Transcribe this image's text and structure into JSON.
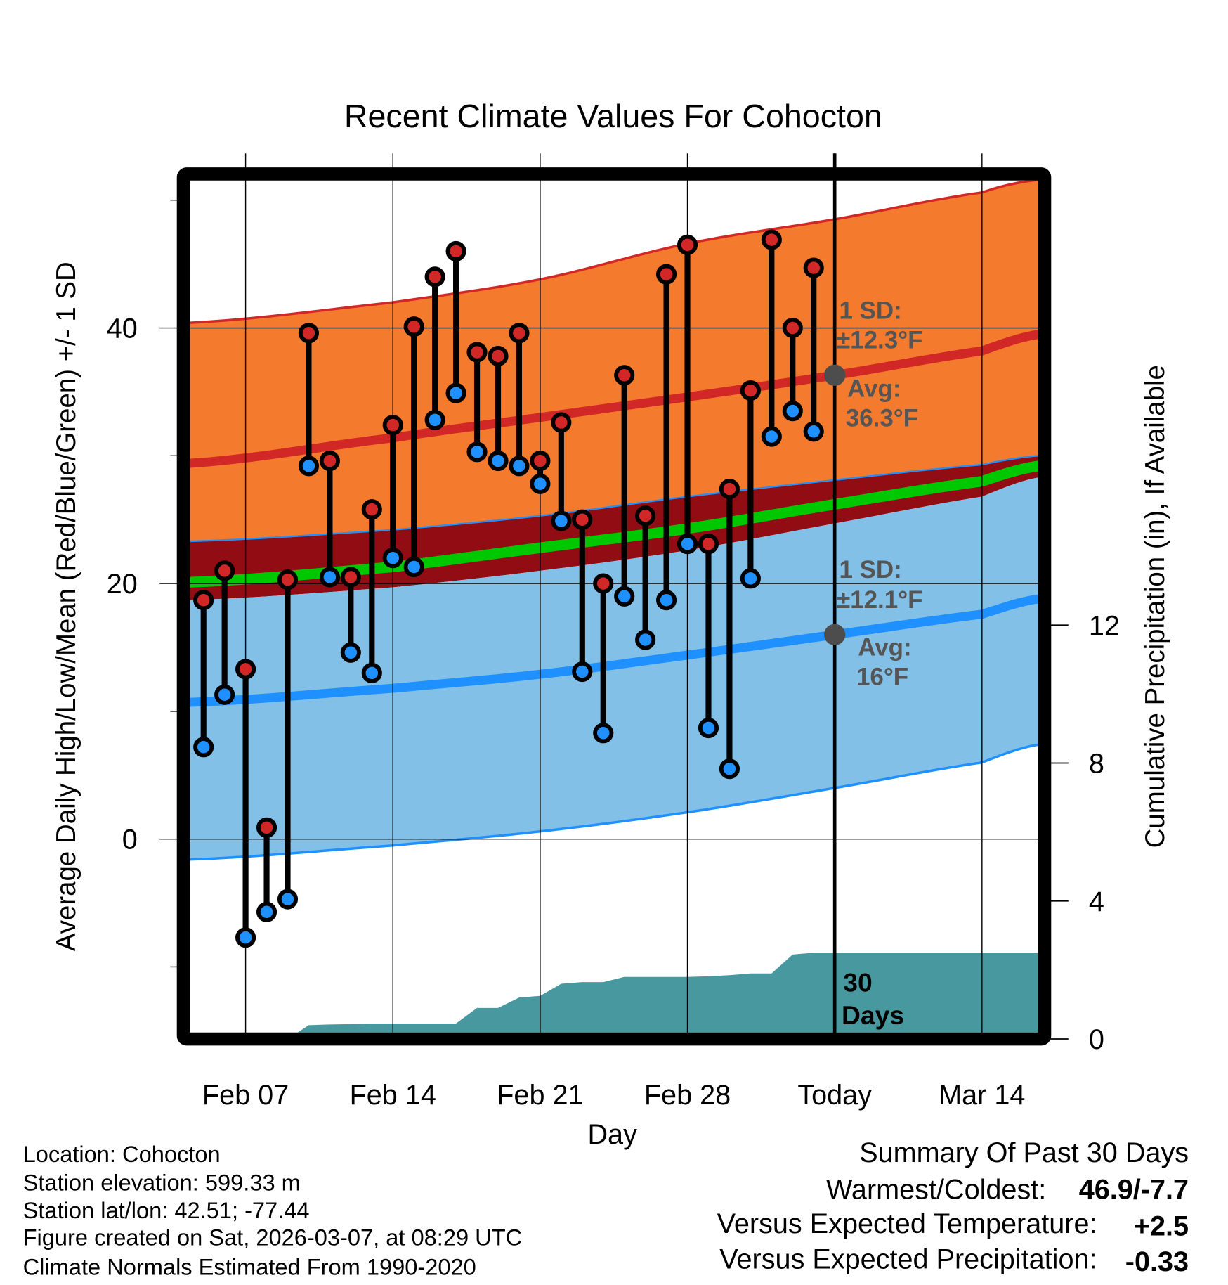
{
  "chart_data": {
    "type": "line",
    "title": "Recent Climate Values For Cohocton",
    "xlabel": "Day",
    "ylabel": "Average Daily High/Low/Mean (Red/Blue/Green) +/- 1 SD",
    "y2label": "Cumulative Precipitation (in), If Available",
    "ylim": [
      -15.6,
      52
    ],
    "y2lim": [
      0,
      25
    ],
    "yticks": [
      "40",
      "20",
      "0"
    ],
    "y2ticks": [
      "12",
      "8",
      "4",
      "0"
    ],
    "xticks": [
      "Feb 07",
      "Feb 14",
      "Feb 21",
      "Feb 28",
      "Today",
      "Mar 14"
    ],
    "grid": true,
    "days": [
      "Feb 05",
      "Feb 06",
      "Feb 07",
      "Feb 08",
      "Feb 09",
      "Feb 10",
      "Feb 11",
      "Feb 12",
      "Feb 13",
      "Feb 14",
      "Feb 15",
      "Feb 16",
      "Feb 17",
      "Feb 18",
      "Feb 19",
      "Feb 20",
      "Feb 21",
      "Feb 22",
      "Feb 23",
      "Feb 24",
      "Feb 25",
      "Feb 26",
      "Feb 27",
      "Feb 28",
      "Mar 01",
      "Mar 02",
      "Mar 03",
      "Mar 04",
      "Mar 05",
      "Mar 06"
    ],
    "series": [
      {
        "name": "Daily High",
        "color": "#d22727",
        "values": [
          18.7,
          21.0,
          13.3,
          0.9,
          20.3,
          39.6,
          29.6,
          20.5,
          25.8,
          32.4,
          40.1,
          44.0,
          46.0,
          38.1,
          37.8,
          39.6,
          29.6,
          32.6,
          25.0,
          20.0,
          36.3,
          25.3,
          44.2,
          46.5,
          23.1,
          27.4,
          35.1,
          46.9,
          40.0,
          44.7
        ]
      },
      {
        "name": "Daily Low",
        "color": "#1e90ff",
        "values": [
          7.2,
          11.3,
          -7.7,
          -5.7,
          -4.7,
          29.2,
          20.5,
          14.6,
          13.0,
          22.0,
          21.3,
          32.8,
          34.9,
          30.3,
          29.6,
          29.2,
          27.8,
          24.9,
          13.1,
          8.3,
          19.0,
          15.6,
          18.7,
          23.1,
          8.7,
          5.5,
          20.4,
          31.5,
          33.5,
          31.9
        ]
      },
      {
        "name": "Cumulative Precipitation",
        "color": "#47999f",
        "values": [
          0,
          0,
          0,
          0,
          0,
          0.4,
          0.42,
          0.43,
          0.45,
          0.45,
          0.45,
          0.45,
          0.45,
          0.9,
          0.9,
          1.2,
          1.25,
          1.6,
          1.65,
          1.65,
          1.8,
          1.8,
          1.8,
          1.8,
          1.82,
          1.85,
          1.9,
          1.9,
          2.45,
          2.5
        ]
      }
    ],
    "normals": {
      "days_from_feb07": [
        -2.7,
        7,
        14,
        21,
        28,
        35,
        37.7
      ],
      "high_plus_sd": [
        40.4,
        42.0,
        43.8,
        46.6,
        48.5,
        50.6,
        51.6
      ],
      "avg_high": [
        29.4,
        31.4,
        33.0,
        34.6,
        36.3,
        38.2,
        39.5
      ],
      "high_minus_sd": [
        23.3,
        24.2,
        25.3,
        26.8,
        28.1,
        29.3,
        30.0
      ],
      "mean": [
        20.1,
        21.3,
        22.8,
        24.3,
        26.2,
        28.0,
        29.2
      ],
      "low_plus_sd": [
        18.7,
        19.7,
        21.0,
        22.6,
        24.7,
        26.8,
        28.3
      ],
      "avg_low": [
        10.7,
        11.8,
        12.9,
        14.4,
        16.0,
        17.6,
        18.8
      ],
      "low_minus_sd": [
        -1.6,
        -0.5,
        0.6,
        2.1,
        4.0,
        6.0,
        7.4
      ]
    },
    "today_avg_high": 36.3,
    "today_avg_low": 16.0,
    "annotations": {
      "high_sd_line1": "1 SD:",
      "high_sd_line2": "±12.3°F",
      "high_avg_line1": "Avg:",
      "high_avg_line2": "36.3°F",
      "low_sd_line1": "1 SD:",
      "low_sd_line2": "±12.1°F",
      "low_avg_line1": "Avg:",
      "low_avg_line2": "16°F",
      "precip_line1": "30",
      "precip_line2": "Days"
    },
    "colors": {
      "orange": "#f47a2d",
      "dark_red": "#910d13",
      "green": "#00c800",
      "light_blue": "#82c0e7",
      "red_line": "#d22727",
      "blue_line": "#1e90ff",
      "precip": "#47999f",
      "marker_gray": "#4d4d4d"
    }
  },
  "footer": {
    "location": "Location: Cohocton",
    "elevation": "Station elevation: 599.33 m",
    "latlon": "Station lat/lon: 42.51; -77.44",
    "created": "Figure created on Sat, 2026-03-07, at 08:29 UTC",
    "normals": "Climate Normals Estimated From 1990-2020"
  },
  "summary": {
    "title": "Summary Of Past 30 Days",
    "warmest_label": "Warmest/Coldest:",
    "warmest_value": "46.9/-7.7",
    "temp_label": "Versus Expected Temperature:",
    "temp_value": "+2.5",
    "temp_color": "#d22727",
    "precip_label": "Versus Expected Precipitation:",
    "precip_value": "-0.33",
    "precip_color": "#a0522d"
  }
}
